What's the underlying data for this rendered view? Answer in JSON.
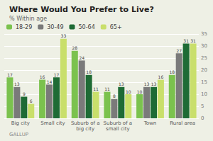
{
  "chart_data": {
    "type": "bar",
    "title": "Where Would You Prefer to Live?",
    "subtitle": "% Within age",
    "annotations": [
      "GALLUP"
    ],
    "categories": [
      "Big city",
      "Small city",
      "Suburb of a\nbig city",
      "Suburb of a\nsmall city",
      "Town",
      "Rural area"
    ],
    "series": [
      {
        "name": "18-29",
        "color": "#7bc24e",
        "values": [
          17,
          16,
          28,
          11,
          10,
          18
        ]
      },
      {
        "name": "30-49",
        "color": "#7a7a7a",
        "values": [
          13,
          14,
          24,
          8,
          13,
          27
        ]
      },
      {
        "name": "50-64",
        "color": "#1e6b35",
        "values": [
          9,
          17,
          18,
          13,
          13,
          31
        ]
      },
      {
        "name": "65+",
        "color": "#c9df6b",
        "values": [
          6,
          33,
          11,
          10,
          16,
          31
        ]
      }
    ],
    "ylim": [
      0,
      35
    ],
    "yticks": [
      0,
      5,
      10,
      15,
      20,
      25,
      30,
      35
    ],
    "grid": true,
    "legend": "top",
    "data_labels": true
  }
}
